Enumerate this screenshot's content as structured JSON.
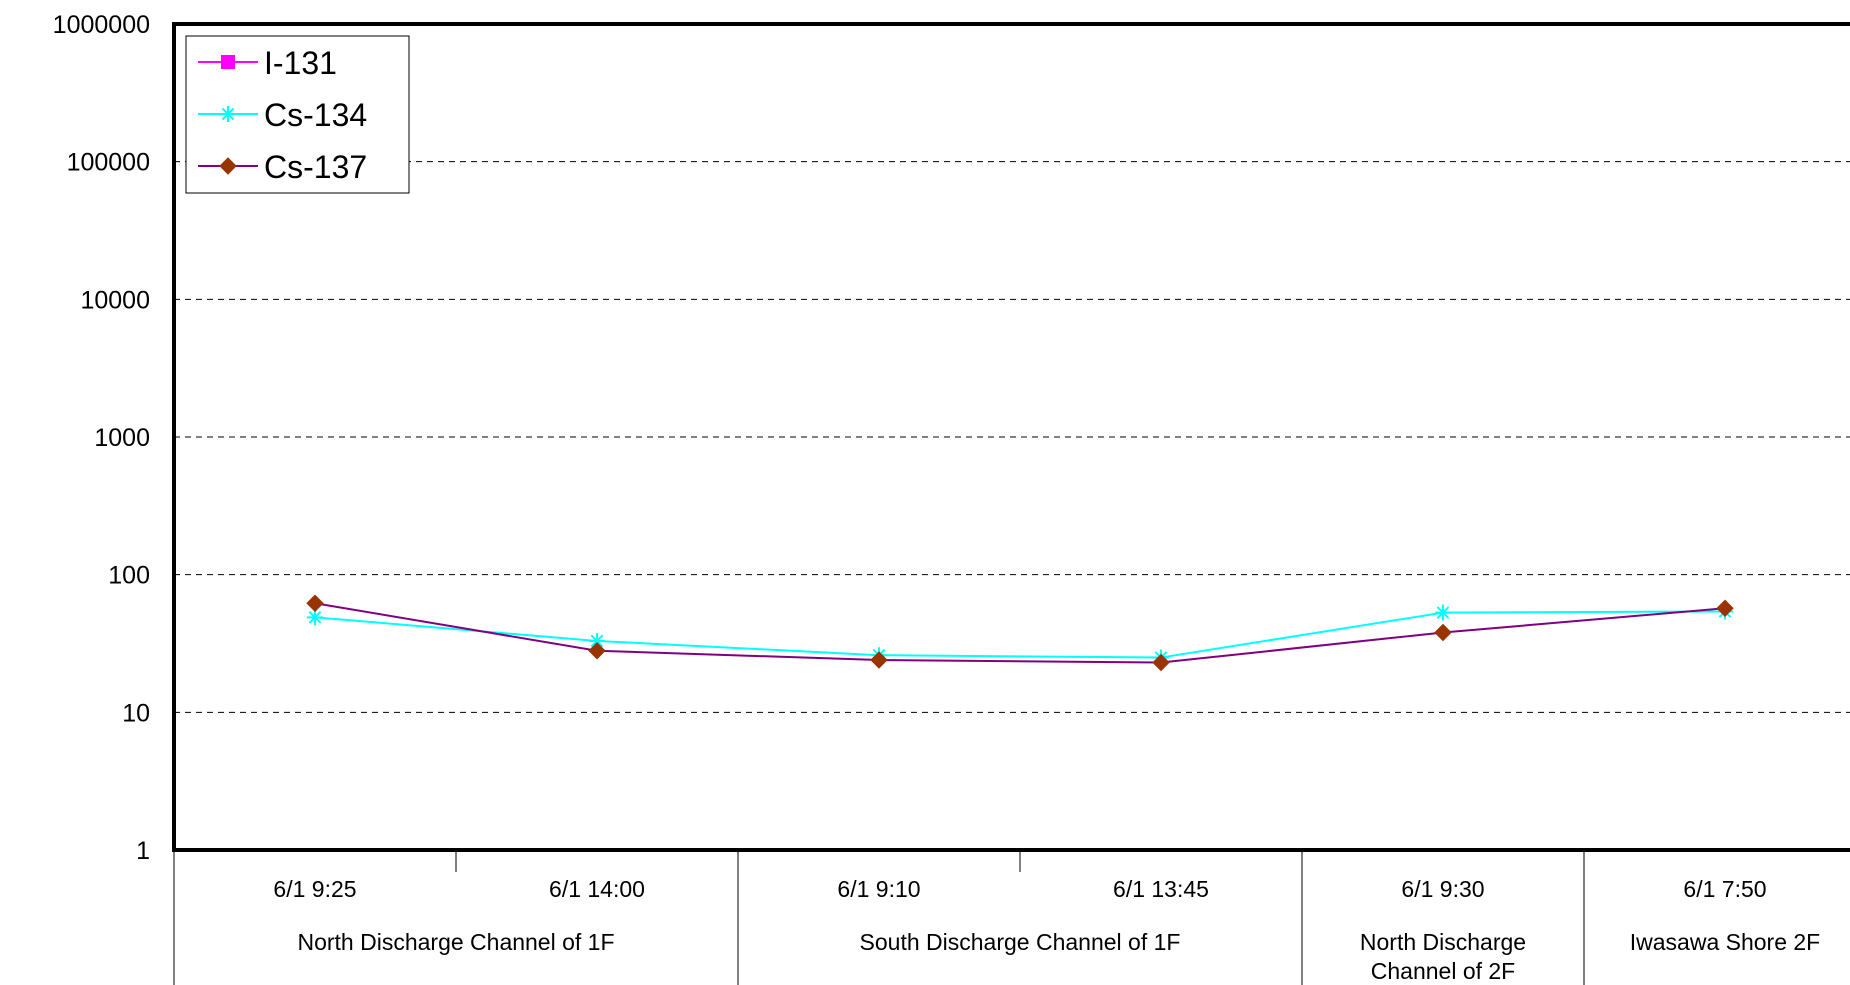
{
  "chart_data": {
    "type": "line",
    "yscale": "log",
    "ylim": [
      1,
      1000000
    ],
    "yticks": [
      "1",
      "10",
      "100",
      "1000",
      "10000",
      "100000",
      "1000000"
    ],
    "grid": true,
    "legend_position": "top-left",
    "x": [
      "6/1 9:25",
      "6/1 14:00",
      "6/1 9:10",
      "6/1 13:45",
      "6/1 9:30",
      "6/1 7:50"
    ],
    "groups": [
      {
        "label": "North Discharge Channel of 1F",
        "span": 2
      },
      {
        "label": "South Discharge Channel of 1F",
        "span": 2
      },
      {
        "label": "North Discharge Channel of 2F",
        "lines": [
          "North Discharge",
          "Channel of 2F"
        ],
        "span": 1
      },
      {
        "label": "Iwasawa Shore 2F",
        "span": 1
      }
    ],
    "series": [
      {
        "name": "I-131",
        "color": "#ff00ff",
        "marker": "square",
        "values": [
          null,
          null,
          null,
          null,
          null,
          null
        ]
      },
      {
        "name": "Cs-134",
        "color": "#00ffff",
        "marker": "asterisk",
        "values": [
          49,
          33,
          26,
          25,
          53,
          54
        ]
      },
      {
        "name": "Cs-137",
        "color": "#800080",
        "marker_color": "#993300",
        "marker": "diamond",
        "values": [
          62,
          28,
          24,
          23,
          38,
          57
        ]
      }
    ]
  }
}
